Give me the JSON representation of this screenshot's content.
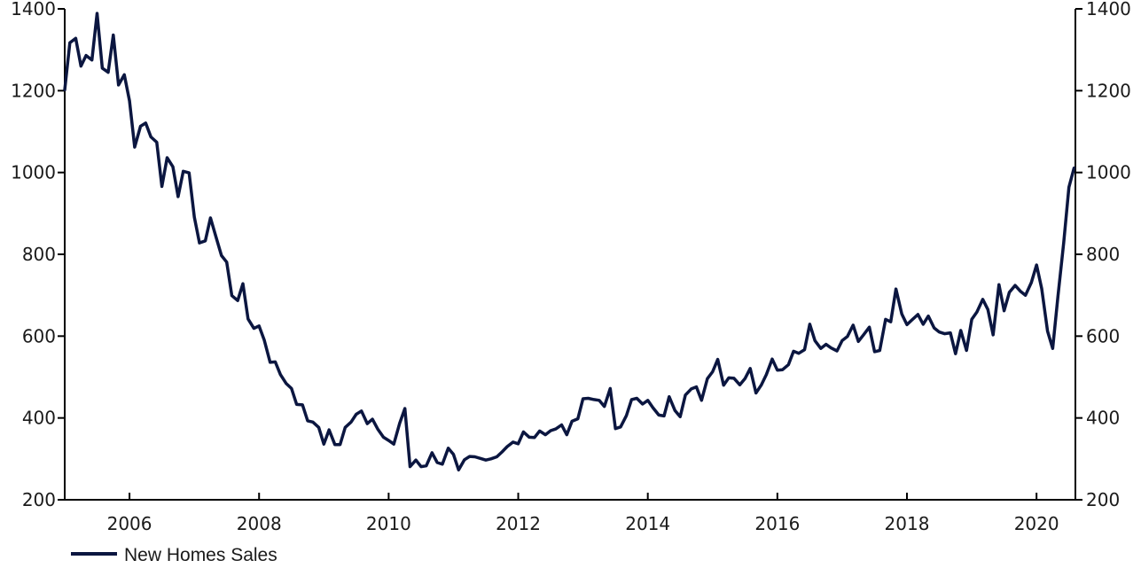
{
  "chart_data": {
    "type": "line",
    "title": "",
    "xlabel": "",
    "ylabel": "",
    "xlim": [
      2005.0,
      2020.6
    ],
    "ylim": [
      200,
      1400
    ],
    "y_ticks": [
      200,
      400,
      600,
      800,
      1000,
      1200,
      1400
    ],
    "x_ticks": [
      2006,
      2008,
      2010,
      2012,
      2014,
      2016,
      2018,
      2020
    ],
    "secondary_y_axis": true,
    "grid": false,
    "legend_position": "bottom-left",
    "line_color": "#0b1640",
    "series": [
      {
        "name": "New Homes Sales",
        "x": [
          2005.0,
          2005.08,
          2005.17,
          2005.25,
          2005.33,
          2005.42,
          2005.5,
          2005.58,
          2005.67,
          2005.75,
          2005.83,
          2005.92,
          2006.0,
          2006.08,
          2006.17,
          2006.25,
          2006.33,
          2006.42,
          2006.5,
          2006.58,
          2006.67,
          2006.75,
          2006.83,
          2006.92,
          2007.0,
          2007.08,
          2007.17,
          2007.25,
          2007.33,
          2007.42,
          2007.5,
          2007.58,
          2007.67,
          2007.75,
          2007.83,
          2007.92,
          2008.0,
          2008.08,
          2008.17,
          2008.25,
          2008.33,
          2008.42,
          2008.5,
          2008.58,
          2008.67,
          2008.75,
          2008.83,
          2008.92,
          2009.0,
          2009.08,
          2009.17,
          2009.25,
          2009.33,
          2009.42,
          2009.5,
          2009.58,
          2009.67,
          2009.75,
          2009.83,
          2009.92,
          2010.0,
          2010.08,
          2010.17,
          2010.25,
          2010.33,
          2010.42,
          2010.5,
          2010.58,
          2010.67,
          2010.75,
          2010.83,
          2010.92,
          2011.0,
          2011.08,
          2011.17,
          2011.25,
          2011.33,
          2011.42,
          2011.5,
          2011.58,
          2011.67,
          2011.75,
          2011.83,
          2011.92,
          2012.0,
          2012.08,
          2012.17,
          2012.25,
          2012.33,
          2012.42,
          2012.5,
          2012.58,
          2012.67,
          2012.75,
          2012.83,
          2012.92,
          2013.0,
          2013.08,
          2013.17,
          2013.25,
          2013.33,
          2013.42,
          2013.5,
          2013.58,
          2013.67,
          2013.75,
          2013.83,
          2013.92,
          2014.0,
          2014.08,
          2014.17,
          2014.25,
          2014.33,
          2014.42,
          2014.5,
          2014.58,
          2014.67,
          2014.75,
          2014.83,
          2014.92,
          2015.0,
          2015.08,
          2015.17,
          2015.25,
          2015.33,
          2015.42,
          2015.5,
          2015.58,
          2015.67,
          2015.75,
          2015.83,
          2015.92,
          2016.0,
          2016.08,
          2016.17,
          2016.25,
          2016.33,
          2016.42,
          2016.5,
          2016.58,
          2016.67,
          2016.75,
          2016.83,
          2016.92,
          2017.0,
          2017.08,
          2017.17,
          2017.25,
          2017.33,
          2017.42,
          2017.5,
          2017.58,
          2017.67,
          2017.75,
          2017.83,
          2017.92,
          2018.0,
          2018.08,
          2018.17,
          2018.25,
          2018.33,
          2018.42,
          2018.5,
          2018.58,
          2018.67,
          2018.75,
          2018.83,
          2018.92,
          2019.0,
          2019.08,
          2019.17,
          2019.25,
          2019.33,
          2019.42,
          2019.5,
          2019.58,
          2019.67,
          2019.75,
          2019.83,
          2019.92,
          2020.0,
          2020.08,
          2020.17,
          2020.25,
          2020.33,
          2020.42,
          2020.5,
          2020.58
        ],
        "values": [
          1202,
          1317,
          1328,
          1260,
          1286,
          1275,
          1389,
          1255,
          1245,
          1336,
          1214,
          1239,
          1175,
          1062,
          1113,
          1121,
          1087,
          1074,
          966,
          1036,
          1014,
          941,
          1003,
          999,
          891,
          828,
          833,
          889,
          845,
          797,
          781,
          699,
          687,
          728,
          642,
          619,
          625,
          590,
          536,
          537,
          506,
          484,
          472,
          433,
          432,
          393,
          390,
          377,
          336,
          371,
          335,
          335,
          377,
          390,
          409,
          417,
          386,
          397,
          373,
          353,
          345,
          336,
          387,
          423,
          281,
          297,
          281,
          283,
          315,
          291,
          287,
          326,
          311,
          273,
          298,
          306,
          305,
          301,
          297,
          300,
          305,
          317,
          330,
          341,
          337,
          366,
          353,
          352,
          368,
          359,
          369,
          373,
          383,
          359,
          392,
          398,
          447,
          448,
          445,
          443,
          428,
          472,
          374,
          378,
          406,
          445,
          448,
          434,
          443,
          425,
          407,
          405,
          452,
          418,
          403,
          456,
          471,
          476,
          443,
          496,
          513,
          543,
          480,
          498,
          497,
          481,
          496,
          521,
          461,
          480,
          506,
          544,
          517,
          518,
          530,
          563,
          558,
          567,
          629,
          589,
          570,
          580,
          571,
          564,
          589,
          599,
          627,
          587,
          603,
          622,
          562,
          565,
          641,
          635,
          715,
          654,
          628,
          640,
          653,
          629,
          649,
          620,
          610,
          606,
          608,
          557,
          614,
          565,
          641,
          659,
          690,
          665,
          603,
          726,
          662,
          707,
          724,
          710,
          700,
          731,
          774,
          716,
          612,
          570,
          697,
          828,
          964,
          1011
        ]
      }
    ]
  }
}
